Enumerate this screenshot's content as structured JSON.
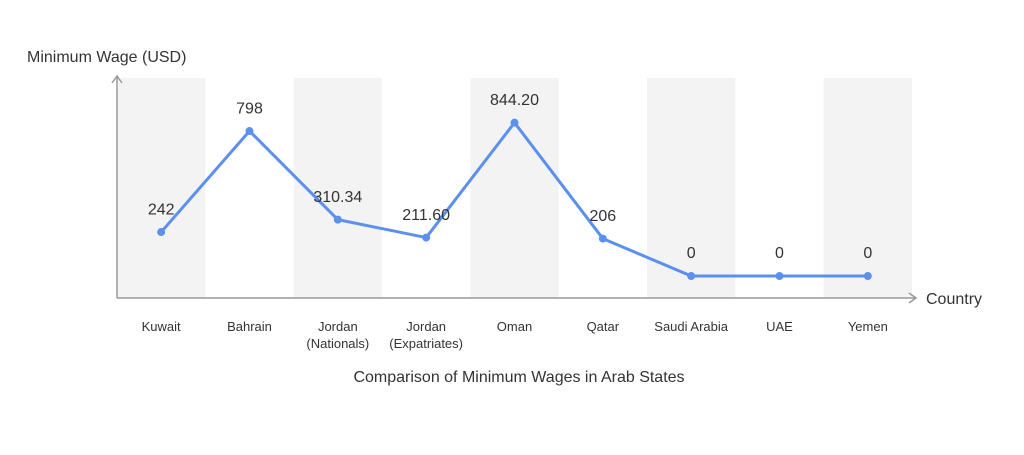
{
  "chart_data": {
    "type": "line",
    "title": "Comparison of Minimum Wages in Arab States",
    "y_label": "Minimum Wage (USD)",
    "x_label": "Country",
    "categories": [
      "Kuwait",
      "Bahrain",
      "Jordan (Nationals)",
      "Jordan (Expatriates)",
      "Oman",
      "Qatar",
      "Saudi Arabia",
      "UAE",
      "Yemen"
    ],
    "values": [
      242,
      798,
      310.34,
      211.6,
      844.2,
      206,
      0,
      0,
      0
    ],
    "value_labels": [
      "242",
      "798",
      "310.34",
      "211.60",
      "844.20",
      "206",
      "0",
      "0",
      "0"
    ],
    "color": "#5b8ff0",
    "band_color": "#f3f3f3",
    "ylim": [
      -121,
      1090
    ]
  }
}
